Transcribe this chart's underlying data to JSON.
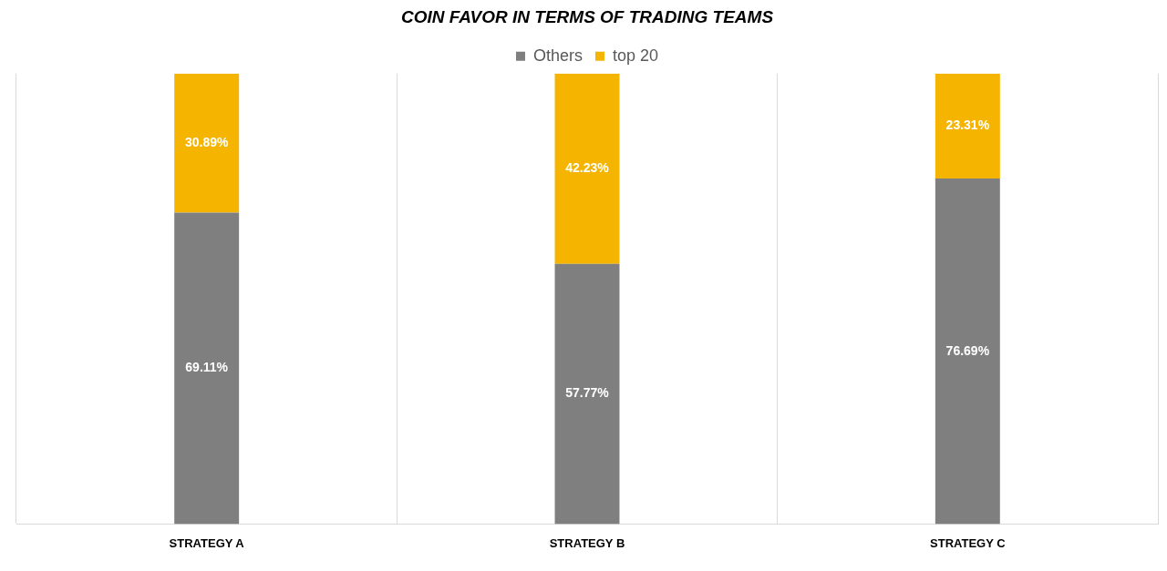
{
  "chart_data": {
    "type": "bar",
    "title": "COIN FAVOR IN TERMS OF TRADING TEAMS",
    "categories": [
      "STRATEGY A",
      "STRATEGY B",
      "STRATEGY C"
    ],
    "stacked": true,
    "ylim": [
      0,
      100
    ],
    "tick_labels": "x",
    "grid": "x",
    "legend": "top",
    "series": [
      {
        "name": "Others",
        "color": "#7f7f7f",
        "values": [
          69.11,
          57.77,
          76.69
        ],
        "value_labels": [
          "69.11%",
          "57.77%",
          "76.69%"
        ]
      },
      {
        "name": "top 20",
        "color": "#f4b400",
        "values": [
          30.89,
          42.23,
          23.31
        ],
        "value_labels": [
          "30.89%",
          "42.23%",
          "23.31%"
        ]
      }
    ]
  }
}
